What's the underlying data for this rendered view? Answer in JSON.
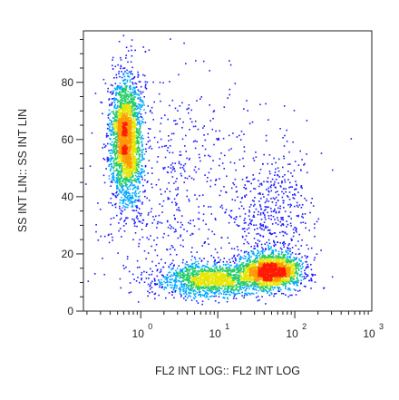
{
  "chart_data": {
    "type": "scatter",
    "style": "density-colored flow cytometry dot plot",
    "xlabel": "FL2 INT LOG:: FL2 INT LOG",
    "ylabel": "SS INT LIN:: SS INT LIN",
    "x_scale": "log",
    "xlim": [
      0.18,
      1000
    ],
    "ylim": [
      0,
      98
    ],
    "x_ticks": [
      {
        "value": 1,
        "base": "10",
        "exp": "0"
      },
      {
        "value": 10,
        "base": "10",
        "exp": "1"
      },
      {
        "value": 100,
        "base": "10",
        "exp": "2"
      },
      {
        "value": 1000,
        "base": "10",
        "exp": "3"
      }
    ],
    "y_ticks": [
      0,
      20,
      40,
      60,
      80
    ],
    "grid": false,
    "density_colors": [
      "#1a1aff",
      "#00a8ff",
      "#22cc66",
      "#e6e600",
      "#ff9900",
      "#ff1a00"
    ],
    "populations": [
      {
        "label": "",
        "x_center": 0.65,
        "y_center": 60,
        "x_spread_log": 0.1,
        "y_spread": 11,
        "count": 2600
      },
      {
        "label": "",
        "x_center": 50,
        "y_center": 14,
        "x_spread_log": 0.2,
        "y_spread": 3.2,
        "count": 1900
      },
      {
        "label": "",
        "x_center": 8,
        "y_center": 11,
        "x_spread_log": 0.35,
        "y_spread": 3,
        "count": 1500
      },
      {
        "label": "",
        "x_center": 45,
        "y_center": 35,
        "x_spread_log": 0.28,
        "y_spread": 12,
        "count": 500
      },
      {
        "label": "",
        "x_center": 2.5,
        "y_center": 40,
        "x_spread_log": 0.5,
        "y_spread": 22,
        "count": 600
      }
    ]
  }
}
